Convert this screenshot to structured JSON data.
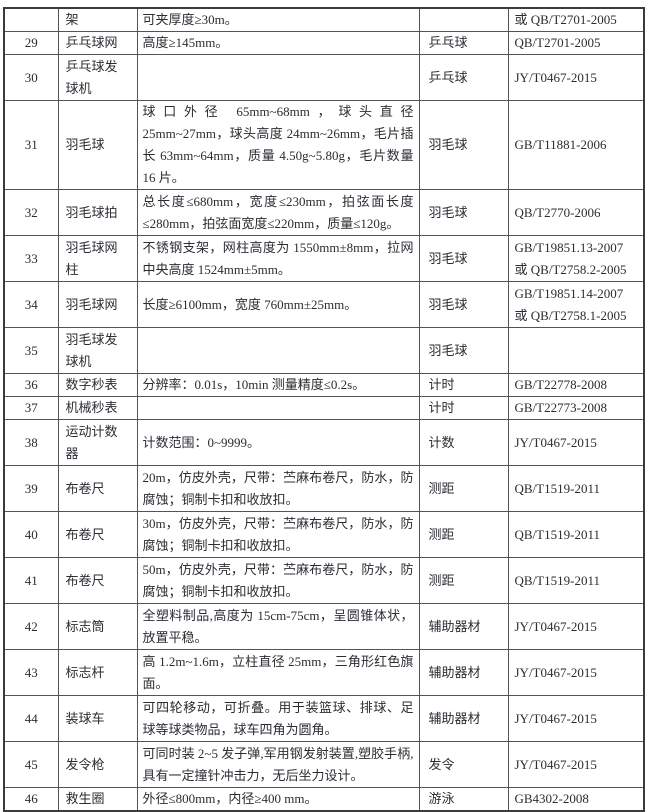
{
  "colors": {
    "text": "#2c2c34",
    "border_inner": "#545454",
    "border_outer": "#3c3c3c",
    "page_background": "#ffffff"
  },
  "table": {
    "rows": [
      {
        "no": "",
        "name": "架",
        "spec": "可夹厚度≥30m。",
        "category": "",
        "standard": "或 QB/T2701-2005"
      },
      {
        "no": "29",
        "name": "乒乓球网",
        "spec": "高度≥145mm。",
        "category": "乒乓球",
        "standard": "QB/T2701-2005"
      },
      {
        "no": "30",
        "name": "乒乓球发\n球机",
        "spec": "",
        "category": "乒乓球",
        "standard": "JY/T0467-2015"
      },
      {
        "no": "31",
        "name": "羽毛球",
        "spec": "球口外径 65mm~68mm，球头直径 25mm~27mm，球头高度 24mm~26mm，毛片插长 63mm~64mm，质量 4.50g~5.80g，毛片数量 16 片。",
        "category": "羽毛球",
        "standard": "GB/T11881-2006"
      },
      {
        "no": "32",
        "name": "羽毛球拍",
        "spec": "总长度≤680mm，宽度≤230mm，拍弦面长度≤280mm，拍弦面宽度≤220mm，质量≤120g。",
        "category": "羽毛球",
        "standard": "QB/T2770-2006"
      },
      {
        "no": "33",
        "name": "羽毛球网\n柱",
        "spec": "不锈钢支架，网柱高度为 1550mm±8mm，拉网中央高度 1524mm±5mm。",
        "category": "羽毛球",
        "standard": "GB/T19851.13-2007\n或 QB/T2758.2-2005"
      },
      {
        "no": "34",
        "name": "羽毛球网",
        "spec": "长度≥6100mm，宽度 760mm±25mm。",
        "category": "羽毛球",
        "standard": "GB/T19851.14-2007\n或 QB/T2758.1-2005"
      },
      {
        "no": "35",
        "name": "羽毛球发\n球机",
        "spec": "",
        "category": "羽毛球",
        "standard": ""
      },
      {
        "no": "36",
        "name": "数字秒表",
        "spec": "分辨率：0.01s，10min 测量精度≤0.2s。",
        "category": "计时",
        "standard": "GB/T22778-2008"
      },
      {
        "no": "37",
        "name": "机械秒表",
        "spec": "",
        "category": "计时",
        "standard": "GB/T22773-2008"
      },
      {
        "no": "38",
        "name": "运动计数\n器",
        "spec": "计数范围：0~9999。",
        "category": "计数",
        "standard": "JY/T0467-2015"
      },
      {
        "no": "39",
        "name": "布卷尺",
        "spec": "20m，仿皮外壳，尺带：苎麻布卷尺，防水，防腐蚀；铜制卡扣和收放扣。",
        "category": "测距",
        "standard": "QB/T1519-2011"
      },
      {
        "no": "40",
        "name": "布卷尺",
        "spec": "30m，仿皮外壳，尺带：苎麻布卷尺，防水，防腐蚀；铜制卡扣和收放扣。",
        "category": "测距",
        "standard": "QB/T1519-2011"
      },
      {
        "no": "41",
        "name": "布卷尺",
        "spec": "50m，仿皮外壳，尺带：苎麻布卷尺，防水，防腐蚀；铜制卡扣和收放扣。",
        "category": "测距",
        "standard": "QB/T1519-2011"
      },
      {
        "no": "42",
        "name": "标志筒",
        "spec": "全塑料制品,高度为 15cm-75cm，呈圆锥体状，放置平稳。",
        "category": "辅助器材",
        "standard": "JY/T0467-2015"
      },
      {
        "no": "43",
        "name": "标志杆",
        "spec": "高 1.2m~1.6m，立柱直径 25mm，三角形红色旗面。",
        "category": "辅助器材",
        "standard": "JY/T0467-2015"
      },
      {
        "no": "44",
        "name": "装球车",
        "spec": "可四轮移动，可折叠。用于装篮球、排球、足球等球类物品，球车四角为圆角。",
        "category": "辅助器材",
        "standard": "JY/T0467-2015"
      },
      {
        "no": "45",
        "name": "发令枪",
        "spec": "可同时装 2~5 发子弹,军用钢发射装置,塑胶手柄,具有一定撞针冲击力，无后坐力设计。",
        "category": "发令",
        "standard": "JY/T0467-2015"
      },
      {
        "no": "46",
        "name": "救生圈",
        "spec": "外径≤800mm，内径≥400 mm。",
        "category": "游泳",
        "standard": "GB4302-2008"
      }
    ]
  }
}
